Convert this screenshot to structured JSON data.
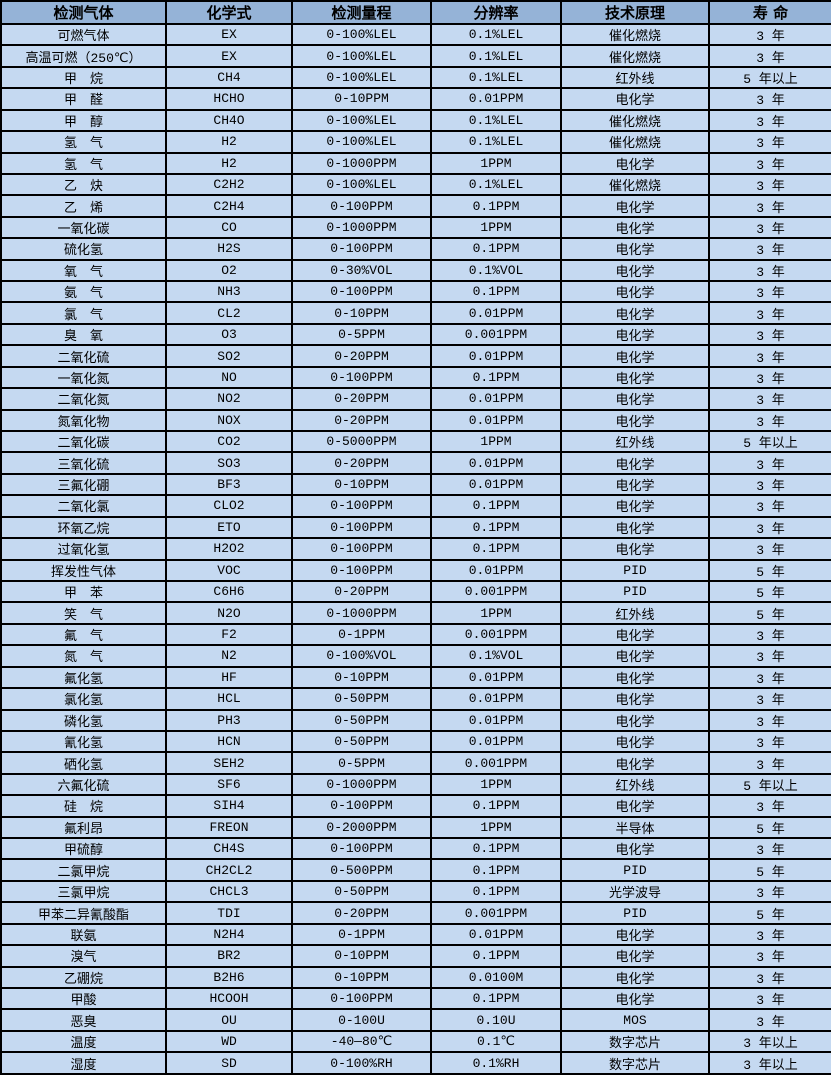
{
  "colors": {
    "header_bg": "#95B3D7",
    "row_bg": "#C5D9F1",
    "border": "#000000",
    "text": "#000000"
  },
  "table": {
    "columns": [
      "检测气体",
      "化学式",
      "检测量程",
      "分辨率",
      "技术原理",
      "寿 命"
    ],
    "rows": [
      [
        "可燃气体",
        "EX",
        "0-100%LEL",
        "0.1%LEL",
        "催化燃烧",
        "3 年"
      ],
      [
        "高温可燃（250℃）",
        "EX",
        "0-100%LEL",
        "0.1%LEL",
        "催化燃烧",
        "3 年"
      ],
      [
        "甲　烷",
        "CH4",
        "0-100%LEL",
        "0.1%LEL",
        "红外线",
        "5 年以上"
      ],
      [
        "甲　醛",
        "HCHO",
        "0-10PPM",
        "0.01PPM",
        "电化学",
        "3 年"
      ],
      [
        "甲　醇",
        "CH4O",
        "0-100%LEL",
        "0.1%LEL",
        "催化燃烧",
        "3 年"
      ],
      [
        "氢　气",
        "H2",
        "0-100%LEL",
        "0.1%LEL",
        "催化燃烧",
        "3 年"
      ],
      [
        "氢　气",
        "H2",
        "0-1000PPM",
        "1PPM",
        "电化学",
        "3 年"
      ],
      [
        "乙　炔",
        "C2H2",
        "0-100%LEL",
        "0.1%LEL",
        "催化燃烧",
        "3 年"
      ],
      [
        "乙　烯",
        "C2H4",
        "0-100PPM",
        "0.1PPM",
        "电化学",
        "3 年"
      ],
      [
        "一氧化碳",
        "CO",
        "0-1000PPM",
        "1PPM",
        "电化学",
        "3 年"
      ],
      [
        "硫化氢",
        "H2S",
        "0-100PPM",
        "0.1PPM",
        "电化学",
        "3 年"
      ],
      [
        "氧　气",
        "O2",
        "0-30%VOL",
        "0.1%VOL",
        "电化学",
        "3 年"
      ],
      [
        "氨　气",
        "NH3",
        "0-100PPM",
        "0.1PPM",
        "电化学",
        "3 年"
      ],
      [
        "氯　气",
        "CL2",
        "0-10PPM",
        "0.01PPM",
        "电化学",
        "3 年"
      ],
      [
        "臭　氧",
        "O3",
        "0-5PPM",
        "0.001PPM",
        "电化学",
        "3 年"
      ],
      [
        "二氧化硫",
        "SO2",
        "0-20PPM",
        "0.01PPM",
        "电化学",
        "3 年"
      ],
      [
        "一氧化氮",
        "NO",
        "0-100PPM",
        "0.1PPM",
        "电化学",
        "3 年"
      ],
      [
        "二氧化氮",
        "NO2",
        "0-20PPM",
        "0.01PPM",
        "电化学",
        "3 年"
      ],
      [
        "氮氧化物",
        "NOX",
        "0-20PPM",
        "0.01PPM",
        "电化学",
        "3 年"
      ],
      [
        "二氧化碳",
        "CO2",
        "0-5000PPM",
        "1PPM",
        "红外线",
        "5 年以上"
      ],
      [
        "三氧化硫",
        "SO3",
        "0-20PPM",
        "0.01PPM",
        "电化学",
        "3 年"
      ],
      [
        "三氟化硼",
        "BF3",
        "0-10PPM",
        "0.01PPM",
        "电化学",
        "3 年"
      ],
      [
        "二氧化氯",
        "CLO2",
        "0-100PPM",
        "0.1PPM",
        "电化学",
        "3 年"
      ],
      [
        "环氧乙烷",
        "ETO",
        "0-100PPM",
        "0.1PPM",
        "电化学",
        "3 年"
      ],
      [
        "过氧化氢",
        "H2O2",
        "0-100PPM",
        "0.1PPM",
        "电化学",
        "3 年"
      ],
      [
        "挥发性气体",
        "VOC",
        "0-100PPM",
        "0.01PPM",
        "PID",
        "5 年"
      ],
      [
        "甲　苯",
        "C6H6",
        "0-20PPM",
        "0.001PPM",
        "PID",
        "5 年"
      ],
      [
        "笑　气",
        "N2O",
        "0-1000PPM",
        "1PPM",
        "红外线",
        "5 年"
      ],
      [
        "氟　气",
        "F2",
        "0-1PPM",
        "0.001PPM",
        "电化学",
        "3 年"
      ],
      [
        "氮　气",
        "N2",
        "0-100%VOL",
        "0.1%VOL",
        "电化学",
        "3 年"
      ],
      [
        "氟化氢",
        "HF",
        "0-10PPM",
        "0.01PPM",
        "电化学",
        "3 年"
      ],
      [
        "氯化氢",
        "HCL",
        "0-50PPM",
        "0.01PPM",
        "电化学",
        "3 年"
      ],
      [
        "磷化氢",
        "PH3",
        "0-50PPM",
        "0.01PPM",
        "电化学",
        "3 年"
      ],
      [
        "氰化氢",
        "HCN",
        "0-50PPM",
        "0.01PPM",
        "电化学",
        "3 年"
      ],
      [
        "硒化氢",
        "SEH2",
        "0-5PPM",
        "0.001PPM",
        "电化学",
        "3 年"
      ],
      [
        "六氟化硫",
        "SF6",
        "0-1000PPM",
        "1PPM",
        "红外线",
        "5 年以上"
      ],
      [
        "硅　烷",
        "SIH4",
        "0-100PPM",
        "0.1PPM",
        "电化学",
        "3 年"
      ],
      [
        "氟利昂",
        "FREON",
        "0-2000PPM",
        "1PPM",
        "半导体",
        "5 年"
      ],
      [
        "甲硫醇",
        "CH4S",
        "0-100PPM",
        "0.1PPM",
        "电化学",
        "3 年"
      ],
      [
        "二氯甲烷",
        "CH2CL2",
        "0-500PPM",
        "0.1PPM",
        "PID",
        "5 年"
      ],
      [
        "三氯甲烷",
        "CHCL3",
        "0-50PPM",
        "0.1PPM",
        "光学波导",
        "3 年"
      ],
      [
        "甲苯二异氰酸酯",
        "TDI",
        "0-20PPM",
        "0.001PPM",
        "PID",
        "5 年"
      ],
      [
        "联氨",
        "N2H4",
        "0-1PPM",
        "0.01PPM",
        "电化学",
        "3 年"
      ],
      [
        "溴气",
        "BR2",
        "0-10PPM",
        "0.1PPM",
        "电化学",
        "3 年"
      ],
      [
        "乙硼烷",
        "B2H6",
        "0-10PPM",
        "0.0100M",
        "电化学",
        "3 年"
      ],
      [
        "甲酸",
        "HCOOH",
        "0-100PPM",
        "0.1PPM",
        "电化学",
        "3 年"
      ],
      [
        "恶臭",
        "OU",
        "0-100U",
        "0.10U",
        "MOS",
        "3 年"
      ],
      [
        "温度",
        "WD",
        "-40—80℃",
        "0.1℃",
        "数字芯片",
        "3 年以上"
      ],
      [
        "湿度",
        "SD",
        "0-100%RH",
        "0.1%RH",
        "数字芯片",
        "3 年以上"
      ]
    ]
  }
}
